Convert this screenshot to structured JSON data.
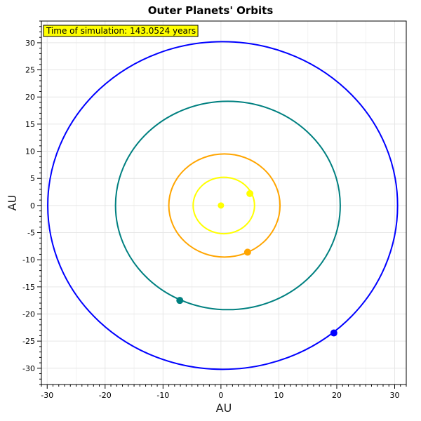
{
  "chart_data": {
    "type": "scatter",
    "title": "Outer Planets' Orbits",
    "xlabel": "AU",
    "ylabel": "AU",
    "xlim": [
      -31,
      32
    ],
    "ylim": [
      -33,
      34
    ],
    "xticks": [
      -30,
      -20,
      -10,
      0,
      10,
      20,
      30
    ],
    "yticks": [
      30,
      25,
      20,
      15,
      10,
      5,
      0,
      -5,
      -10,
      -15,
      -20,
      -25,
      -30
    ],
    "grid": true,
    "annotation": "Time of simulation: 143.0524 years",
    "annotation_bg": "#ffff00",
    "sun": {
      "x": 0,
      "y": 0,
      "color": "#ffff00"
    },
    "series": [
      {
        "color": "#ffff00",
        "orbit": {
          "cx": 0.5,
          "cy": 0,
          "rx": 5.3,
          "ry": 5.2
        },
        "position": {
          "x": 5.0,
          "y": 2.2
        }
      },
      {
        "color": "#ffa500",
        "orbit": {
          "cx": 0.6,
          "cy": 0,
          "rx": 9.6,
          "ry": 9.5
        },
        "position": {
          "x": 4.6,
          "y": -8.6
        }
      },
      {
        "color": "#008080",
        "orbit": {
          "cx": 1.2,
          "cy": 0,
          "rx": 19.4,
          "ry": 19.2
        },
        "position": {
          "x": -7.1,
          "y": -17.5
        }
      },
      {
        "color": "#0000ff",
        "orbit": {
          "cx": 0.3,
          "cy": 0,
          "rx": 30.2,
          "ry": 30.2
        },
        "position": {
          "x": 19.5,
          "y": -23.5
        }
      }
    ]
  }
}
